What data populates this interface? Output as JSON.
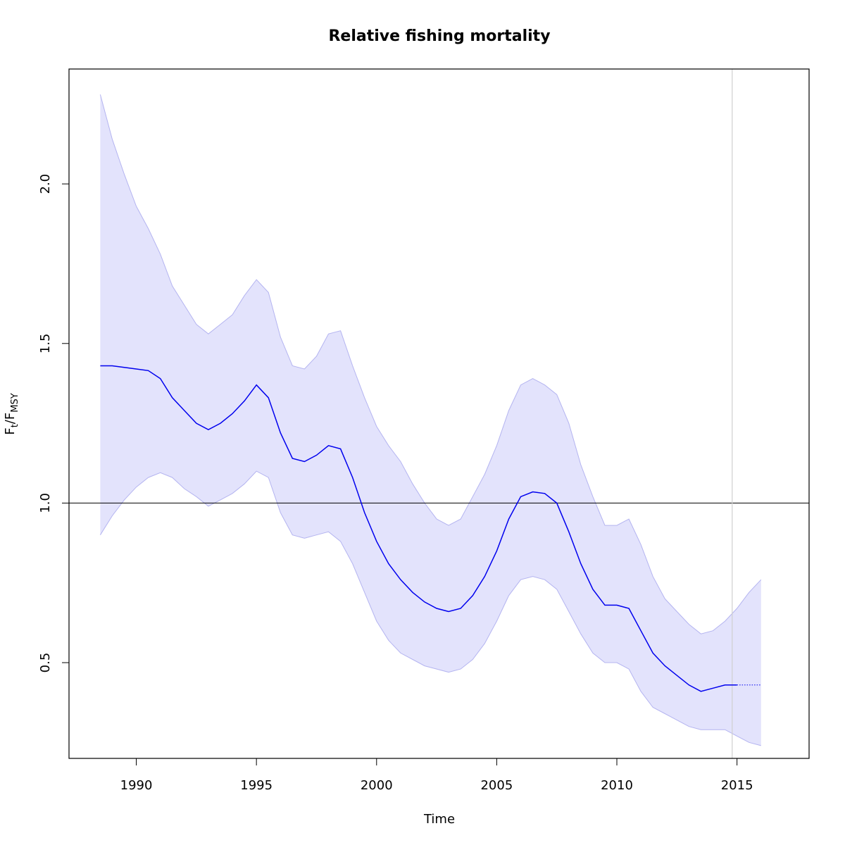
{
  "chart_data": {
    "type": "line",
    "title": "Relative fishing mortality",
    "xlabel": "Time",
    "ylabel": {
      "main": "F",
      "sub1": "t",
      "sep": "/F",
      "sub2": "MSY"
    },
    "xlim": [
      1987.2,
      2018.0
    ],
    "ylim": [
      0.2,
      2.36
    ],
    "xticks": [
      1990,
      1995,
      2000,
      2005,
      2010,
      2015
    ],
    "yticks": [
      0.5,
      1.0,
      1.5,
      2.0
    ],
    "xtick_labels": [
      "1990",
      "1995",
      "2000",
      "2005",
      "2010",
      "2015"
    ],
    "ytick_labels": [
      "0.5",
      "1.0",
      "1.5",
      "2.0"
    ],
    "reference_line_y": 1.0,
    "last_data_x": 2014.8,
    "grid": false,
    "colors": {
      "line": "#0000ee",
      "band_fill": "#e3e3fc",
      "band_edge": "#b4b4f0",
      "ref_line": "#000000",
      "vline": "#cfcfcf"
    },
    "series": [
      {
        "role": "estimate",
        "x": [
          1988.5,
          1989.0,
          1989.5,
          1990.0,
          1990.5,
          1991.0,
          1991.5,
          1992.0,
          1992.5,
          1993.0,
          1993.5,
          1994.0,
          1994.5,
          1995.0,
          1995.5,
          1996.0,
          1996.5,
          1997.0,
          1997.5,
          1998.0,
          1998.5,
          1999.0,
          1999.5,
          2000.0,
          2000.5,
          2001.0,
          2001.5,
          2002.0,
          2002.5,
          2003.0,
          2003.5,
          2004.0,
          2004.5,
          2005.0,
          2005.5,
          2006.0,
          2006.5,
          2007.0,
          2007.5,
          2008.0,
          2008.5,
          2009.0,
          2009.5,
          2010.0,
          2010.5,
          2011.0,
          2011.5,
          2012.0,
          2012.5,
          2013.0,
          2013.5,
          2014.0,
          2014.5,
          2015.0
        ],
        "y": [
          1.43,
          1.43,
          1.425,
          1.42,
          1.415,
          1.39,
          1.33,
          1.29,
          1.25,
          1.23,
          1.25,
          1.28,
          1.32,
          1.37,
          1.33,
          1.22,
          1.14,
          1.13,
          1.15,
          1.18,
          1.17,
          1.08,
          0.97,
          0.88,
          0.81,
          0.76,
          0.72,
          0.69,
          0.67,
          0.66,
          0.67,
          0.71,
          0.77,
          0.85,
          0.95,
          1.02,
          1.035,
          1.03,
          1.0,
          0.91,
          0.81,
          0.73,
          0.68,
          0.68,
          0.67,
          0.6,
          0.53,
          0.49,
          0.46,
          0.43,
          0.41,
          0.42,
          0.43,
          0.43
        ]
      },
      {
        "role": "forecast",
        "x": [
          2015.0,
          2016.0
        ],
        "y": [
          0.43,
          0.43
        ]
      },
      {
        "role": "upper_bound",
        "x": [
          1988.5,
          1989.0,
          1989.5,
          1990.0,
          1990.5,
          1991.0,
          1991.5,
          1992.0,
          1992.5,
          1993.0,
          1993.5,
          1994.0,
          1994.5,
          1995.0,
          1995.5,
          1996.0,
          1996.5,
          1997.0,
          1997.5,
          1998.0,
          1998.5,
          1999.0,
          1999.5,
          2000.0,
          2000.5,
          2001.0,
          2001.5,
          2002.0,
          2002.5,
          2003.0,
          2003.5,
          2004.0,
          2004.5,
          2005.0,
          2005.5,
          2006.0,
          2006.5,
          2007.0,
          2007.5,
          2008.0,
          2008.5,
          2009.0,
          2009.5,
          2010.0,
          2010.5,
          2011.0,
          2011.5,
          2012.0,
          2012.5,
          2013.0,
          2013.5,
          2014.0,
          2014.5,
          2015.0,
          2015.5,
          2016.0
        ],
        "y": [
          2.28,
          2.14,
          2.03,
          1.93,
          1.86,
          1.78,
          1.68,
          1.62,
          1.56,
          1.53,
          1.56,
          1.59,
          1.65,
          1.7,
          1.66,
          1.52,
          1.43,
          1.42,
          1.46,
          1.53,
          1.54,
          1.43,
          1.33,
          1.24,
          1.18,
          1.13,
          1.06,
          1.0,
          0.95,
          0.93,
          0.95,
          1.02,
          1.09,
          1.18,
          1.29,
          1.37,
          1.39,
          1.37,
          1.34,
          1.25,
          1.12,
          1.02,
          0.93,
          0.93,
          0.95,
          0.87,
          0.77,
          0.7,
          0.66,
          0.62,
          0.59,
          0.6,
          0.63,
          0.67,
          0.72,
          0.76
        ]
      },
      {
        "role": "lower_bound",
        "x": [
          1988.5,
          1989.0,
          1989.5,
          1990.0,
          1990.5,
          1991.0,
          1991.5,
          1992.0,
          1992.5,
          1993.0,
          1993.5,
          1994.0,
          1994.5,
          1995.0,
          1995.5,
          1996.0,
          1996.5,
          1997.0,
          1997.5,
          1998.0,
          1998.5,
          1999.0,
          1999.5,
          2000.0,
          2000.5,
          2001.0,
          2001.5,
          2002.0,
          2002.5,
          2003.0,
          2003.5,
          2004.0,
          2004.5,
          2005.0,
          2005.5,
          2006.0,
          2006.5,
          2007.0,
          2007.5,
          2008.0,
          2008.5,
          2009.0,
          2009.5,
          2010.0,
          2010.5,
          2011.0,
          2011.5,
          2012.0,
          2012.5,
          2013.0,
          2013.5,
          2014.0,
          2014.5,
          2015.0,
          2015.5,
          2016.0
        ],
        "y": [
          0.9,
          0.96,
          1.01,
          1.05,
          1.08,
          1.095,
          1.08,
          1.045,
          1.02,
          0.99,
          1.01,
          1.03,
          1.06,
          1.1,
          1.08,
          0.97,
          0.9,
          0.89,
          0.9,
          0.91,
          0.88,
          0.81,
          0.72,
          0.63,
          0.57,
          0.53,
          0.51,
          0.49,
          0.48,
          0.47,
          0.48,
          0.51,
          0.56,
          0.63,
          0.71,
          0.76,
          0.77,
          0.76,
          0.73,
          0.66,
          0.59,
          0.53,
          0.5,
          0.5,
          0.48,
          0.41,
          0.36,
          0.34,
          0.32,
          0.3,
          0.29,
          0.29,
          0.29,
          0.27,
          0.25,
          0.24
        ]
      }
    ]
  }
}
